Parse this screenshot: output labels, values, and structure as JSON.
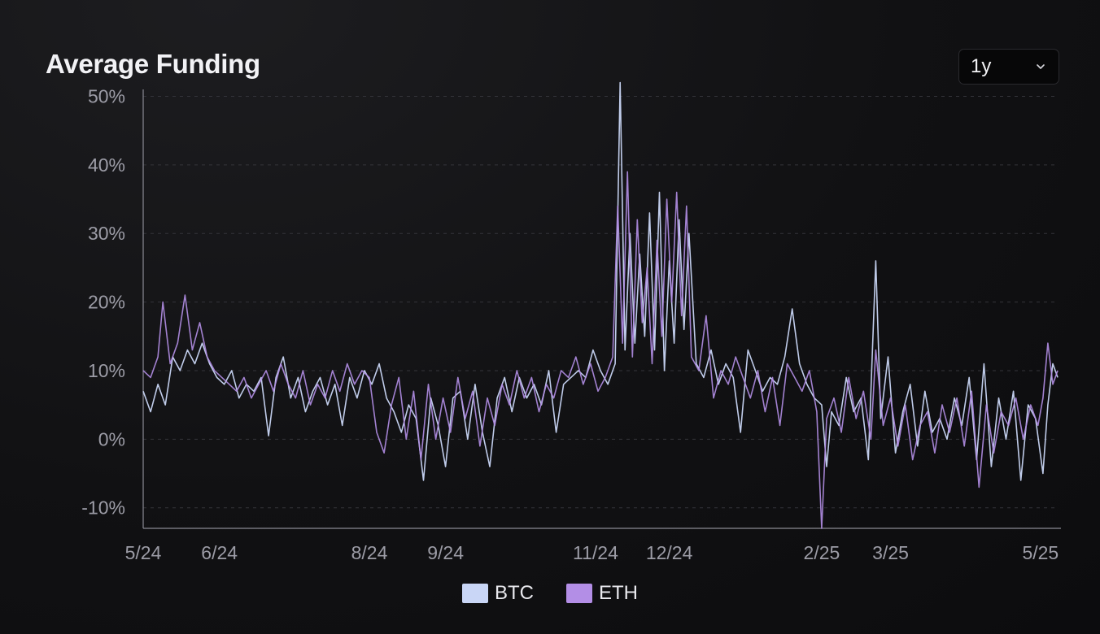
{
  "header": {
    "title": "Average Funding"
  },
  "range_select": {
    "value": "1y",
    "icon": "chevron-down-icon"
  },
  "colors": {
    "BTC": "#c9d6f6",
    "ETH": "#b38ee6",
    "grid": "#34343a",
    "axis": "#8a8a94"
  },
  "chart_data": {
    "type": "line",
    "title": "Average Funding",
    "xlabel": "",
    "ylabel": "",
    "y_ticks": [
      "50%",
      "40%",
      "30%",
      "20%",
      "10%",
      "0%",
      "-10%"
    ],
    "y_tick_values": [
      50,
      40,
      30,
      20,
      10,
      0,
      -10
    ],
    "ylim": [
      -13,
      51
    ],
    "x_ticks": [
      "5/24",
      "6/24",
      "8/24",
      "9/24",
      "11/24",
      "12/24",
      "2/25",
      "3/25",
      "5/25"
    ],
    "x_tick_dates": [
      "2024-05-01",
      "2024-06-01",
      "2024-08-01",
      "2024-09-01",
      "2024-11-01",
      "2024-12-01",
      "2025-02-01",
      "2025-03-01",
      "2025-05-01"
    ],
    "xlim": [
      "2024-05-01",
      "2025-05-08"
    ],
    "grid": "horizontal dashed",
    "legend": "bottom-center",
    "series": [
      {
        "name": "BTC",
        "points": [
          [
            "2024-05-01",
            7
          ],
          [
            "2024-05-04",
            4
          ],
          [
            "2024-05-07",
            8
          ],
          [
            "2024-05-10",
            5
          ],
          [
            "2024-05-13",
            12
          ],
          [
            "2024-05-16",
            10
          ],
          [
            "2024-05-19",
            13
          ],
          [
            "2024-05-22",
            11
          ],
          [
            "2024-05-25",
            14
          ],
          [
            "2024-05-28",
            11
          ],
          [
            "2024-05-31",
            9
          ],
          [
            "2024-06-03",
            8
          ],
          [
            "2024-06-06",
            10
          ],
          [
            "2024-06-09",
            6
          ],
          [
            "2024-06-12",
            8
          ],
          [
            "2024-06-15",
            7
          ],
          [
            "2024-06-18",
            9
          ],
          [
            "2024-06-21",
            0.5
          ],
          [
            "2024-06-24",
            9
          ],
          [
            "2024-06-27",
            12
          ],
          [
            "2024-06-30",
            6
          ],
          [
            "2024-07-03",
            9
          ],
          [
            "2024-07-06",
            4
          ],
          [
            "2024-07-09",
            7
          ],
          [
            "2024-07-12",
            9
          ],
          [
            "2024-07-15",
            5
          ],
          [
            "2024-07-18",
            8
          ],
          [
            "2024-07-21",
            2
          ],
          [
            "2024-07-24",
            9
          ],
          [
            "2024-07-27",
            6
          ],
          [
            "2024-07-30",
            10
          ],
          [
            "2024-08-02",
            8
          ],
          [
            "2024-08-05",
            11
          ],
          [
            "2024-08-08",
            6
          ],
          [
            "2024-08-11",
            4
          ],
          [
            "2024-08-14",
            1
          ],
          [
            "2024-08-17",
            5
          ],
          [
            "2024-08-20",
            3
          ],
          [
            "2024-08-23",
            -6
          ],
          [
            "2024-08-26",
            6
          ],
          [
            "2024-08-29",
            2
          ],
          [
            "2024-09-01",
            -4
          ],
          [
            "2024-09-04",
            6
          ],
          [
            "2024-09-07",
            7
          ],
          [
            "2024-09-10",
            0
          ],
          [
            "2024-09-13",
            8
          ],
          [
            "2024-09-16",
            1
          ],
          [
            "2024-09-19",
            -4
          ],
          [
            "2024-09-22",
            6
          ],
          [
            "2024-09-25",
            9
          ],
          [
            "2024-09-28",
            4
          ],
          [
            "2024-10-01",
            9
          ],
          [
            "2024-10-04",
            6
          ],
          [
            "2024-10-07",
            8
          ],
          [
            "2024-10-10",
            5
          ],
          [
            "2024-10-13",
            10
          ],
          [
            "2024-10-16",
            1
          ],
          [
            "2024-10-19",
            8
          ],
          [
            "2024-10-22",
            9
          ],
          [
            "2024-10-25",
            10
          ],
          [
            "2024-10-28",
            9
          ],
          [
            "2024-10-31",
            13
          ],
          [
            "2024-11-03",
            10
          ],
          [
            "2024-11-06",
            8
          ],
          [
            "2024-11-09",
            11
          ],
          [
            "2024-11-11",
            52
          ],
          [
            "2024-11-13",
            13
          ],
          [
            "2024-11-15",
            30
          ],
          [
            "2024-11-17",
            14
          ],
          [
            "2024-11-19",
            27
          ],
          [
            "2024-11-21",
            15
          ],
          [
            "2024-11-23",
            33
          ],
          [
            "2024-11-25",
            13
          ],
          [
            "2024-11-27",
            36
          ],
          [
            "2024-11-29",
            10
          ],
          [
            "2024-12-01",
            26
          ],
          [
            "2024-12-03",
            14
          ],
          [
            "2024-12-05",
            32
          ],
          [
            "2024-12-07",
            16
          ],
          [
            "2024-12-09",
            30
          ],
          [
            "2024-12-12",
            11
          ],
          [
            "2024-12-15",
            9
          ],
          [
            "2024-12-18",
            13
          ],
          [
            "2024-12-21",
            8
          ],
          [
            "2024-12-24",
            11
          ],
          [
            "2024-12-27",
            9
          ],
          [
            "2024-12-30",
            1
          ],
          [
            "2025-01-02",
            13
          ],
          [
            "2025-01-05",
            10
          ],
          [
            "2025-01-08",
            7
          ],
          [
            "2025-01-11",
            9
          ],
          [
            "2025-01-14",
            8
          ],
          [
            "2025-01-17",
            12
          ],
          [
            "2025-01-20",
            19
          ],
          [
            "2025-01-23",
            11
          ],
          [
            "2025-01-26",
            8
          ],
          [
            "2025-01-29",
            6
          ],
          [
            "2025-02-01",
            5
          ],
          [
            "2025-02-03",
            -4
          ],
          [
            "2025-02-05",
            4
          ],
          [
            "2025-02-08",
            2
          ],
          [
            "2025-02-11",
            9
          ],
          [
            "2025-02-14",
            4
          ],
          [
            "2025-02-17",
            6
          ],
          [
            "2025-02-20",
            -3
          ],
          [
            "2025-02-23",
            26
          ],
          [
            "2025-02-25",
            3
          ],
          [
            "2025-02-28",
            12
          ],
          [
            "2025-03-03",
            -2
          ],
          [
            "2025-03-06",
            4
          ],
          [
            "2025-03-09",
            8
          ],
          [
            "2025-03-12",
            -1
          ],
          [
            "2025-03-15",
            7
          ],
          [
            "2025-03-18",
            1
          ],
          [
            "2025-03-21",
            3
          ],
          [
            "2025-03-24",
            0
          ],
          [
            "2025-03-27",
            6
          ],
          [
            "2025-03-30",
            2
          ],
          [
            "2025-04-02",
            9
          ],
          [
            "2025-04-05",
            -3
          ],
          [
            "2025-04-08",
            11
          ],
          [
            "2025-04-11",
            -4
          ],
          [
            "2025-04-14",
            6
          ],
          [
            "2025-04-17",
            0
          ],
          [
            "2025-04-20",
            7
          ],
          [
            "2025-04-23",
            -6
          ],
          [
            "2025-04-26",
            5
          ],
          [
            "2025-04-29",
            3
          ],
          [
            "2025-05-02",
            -5
          ],
          [
            "2025-05-04",
            5
          ],
          [
            "2025-05-06",
            11
          ],
          [
            "2025-05-08",
            9
          ]
        ]
      },
      {
        "name": "ETH",
        "points": [
          [
            "2024-05-01",
            10
          ],
          [
            "2024-05-04",
            9
          ],
          [
            "2024-05-07",
            12
          ],
          [
            "2024-05-09",
            20
          ],
          [
            "2024-05-12",
            11
          ],
          [
            "2024-05-15",
            14
          ],
          [
            "2024-05-18",
            21
          ],
          [
            "2024-05-21",
            13
          ],
          [
            "2024-05-24",
            17
          ],
          [
            "2024-05-27",
            12
          ],
          [
            "2024-05-30",
            10
          ],
          [
            "2024-06-02",
            9
          ],
          [
            "2024-06-05",
            8
          ],
          [
            "2024-06-08",
            7
          ],
          [
            "2024-06-11",
            9
          ],
          [
            "2024-06-14",
            6
          ],
          [
            "2024-06-17",
            8
          ],
          [
            "2024-06-20",
            10
          ],
          [
            "2024-06-23",
            7
          ],
          [
            "2024-06-26",
            11
          ],
          [
            "2024-06-29",
            8
          ],
          [
            "2024-07-02",
            6
          ],
          [
            "2024-07-05",
            10
          ],
          [
            "2024-07-08",
            5
          ],
          [
            "2024-07-11",
            8
          ],
          [
            "2024-07-14",
            6
          ],
          [
            "2024-07-17",
            10
          ],
          [
            "2024-07-20",
            7
          ],
          [
            "2024-07-23",
            11
          ],
          [
            "2024-07-26",
            8
          ],
          [
            "2024-07-29",
            10
          ],
          [
            "2024-08-01",
            9
          ],
          [
            "2024-08-04",
            1
          ],
          [
            "2024-08-07",
            -2
          ],
          [
            "2024-08-10",
            5
          ],
          [
            "2024-08-13",
            9
          ],
          [
            "2024-08-16",
            0
          ],
          [
            "2024-08-19",
            7
          ],
          [
            "2024-08-22",
            -3
          ],
          [
            "2024-08-25",
            8
          ],
          [
            "2024-08-28",
            0
          ],
          [
            "2024-08-31",
            6
          ],
          [
            "2024-09-03",
            1
          ],
          [
            "2024-09-06",
            9
          ],
          [
            "2024-09-09",
            3
          ],
          [
            "2024-09-12",
            7
          ],
          [
            "2024-09-15",
            -1
          ],
          [
            "2024-09-18",
            6
          ],
          [
            "2024-09-21",
            2
          ],
          [
            "2024-09-24",
            8
          ],
          [
            "2024-09-27",
            5
          ],
          [
            "2024-09-30",
            10
          ],
          [
            "2024-10-03",
            6
          ],
          [
            "2024-10-06",
            9
          ],
          [
            "2024-10-09",
            4
          ],
          [
            "2024-10-12",
            8
          ],
          [
            "2024-10-15",
            6
          ],
          [
            "2024-10-18",
            10
          ],
          [
            "2024-10-21",
            9
          ],
          [
            "2024-10-24",
            12
          ],
          [
            "2024-10-27",
            8
          ],
          [
            "2024-10-30",
            11
          ],
          [
            "2024-11-02",
            7
          ],
          [
            "2024-11-05",
            9
          ],
          [
            "2024-11-08",
            12
          ],
          [
            "2024-11-10",
            34
          ],
          [
            "2024-11-12",
            14
          ],
          [
            "2024-11-14",
            39
          ],
          [
            "2024-11-16",
            12
          ],
          [
            "2024-11-18",
            32
          ],
          [
            "2024-11-20",
            17
          ],
          [
            "2024-11-22",
            25
          ],
          [
            "2024-11-24",
            11
          ],
          [
            "2024-11-26",
            29
          ],
          [
            "2024-11-28",
            15
          ],
          [
            "2024-11-30",
            35
          ],
          [
            "2024-12-02",
            20
          ],
          [
            "2024-12-04",
            36
          ],
          [
            "2024-12-06",
            18
          ],
          [
            "2024-12-08",
            34
          ],
          [
            "2024-12-10",
            12
          ],
          [
            "2024-12-13",
            10
          ],
          [
            "2024-12-16",
            18
          ],
          [
            "2024-12-19",
            6
          ],
          [
            "2024-12-22",
            10
          ],
          [
            "2024-12-25",
            8
          ],
          [
            "2024-12-28",
            12
          ],
          [
            "2024-12-31",
            9
          ],
          [
            "2025-01-03",
            6
          ],
          [
            "2025-01-06",
            10
          ],
          [
            "2025-01-09",
            4
          ],
          [
            "2025-01-12",
            9
          ],
          [
            "2025-01-15",
            2
          ],
          [
            "2025-01-18",
            11
          ],
          [
            "2025-01-21",
            9
          ],
          [
            "2025-01-24",
            7
          ],
          [
            "2025-01-27",
            10
          ],
          [
            "2025-01-30",
            4
          ],
          [
            "2025-02-01",
            -13
          ],
          [
            "2025-02-03",
            3
          ],
          [
            "2025-02-06",
            6
          ],
          [
            "2025-02-09",
            1
          ],
          [
            "2025-02-12",
            9
          ],
          [
            "2025-02-15",
            3
          ],
          [
            "2025-02-18",
            7
          ],
          [
            "2025-02-21",
            0
          ],
          [
            "2025-02-23",
            13
          ],
          [
            "2025-02-26",
            2
          ],
          [
            "2025-03-01",
            6
          ],
          [
            "2025-03-04",
            -1
          ],
          [
            "2025-03-07",
            5
          ],
          [
            "2025-03-10",
            -3
          ],
          [
            "2025-03-13",
            2
          ],
          [
            "2025-03-16",
            4
          ],
          [
            "2025-03-19",
            -2
          ],
          [
            "2025-03-22",
            5
          ],
          [
            "2025-03-25",
            1
          ],
          [
            "2025-03-28",
            6
          ],
          [
            "2025-03-31",
            -1
          ],
          [
            "2025-04-03",
            7
          ],
          [
            "2025-04-06",
            -7
          ],
          [
            "2025-04-09",
            5
          ],
          [
            "2025-04-12",
            -2
          ],
          [
            "2025-04-15",
            4
          ],
          [
            "2025-04-18",
            2
          ],
          [
            "2025-04-21",
            6
          ],
          [
            "2025-04-24",
            0
          ],
          [
            "2025-04-27",
            5
          ],
          [
            "2025-04-30",
            2
          ],
          [
            "2025-05-02",
            6
          ],
          [
            "2025-05-04",
            14
          ],
          [
            "2025-05-06",
            8
          ],
          [
            "2025-05-08",
            10
          ]
        ]
      }
    ]
  }
}
